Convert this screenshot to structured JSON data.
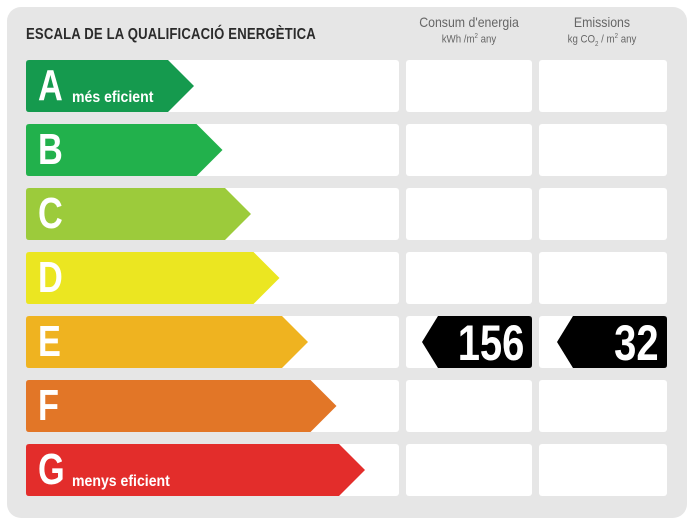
{
  "title": "ESCALA DE LA QUALIFICACIÓ ENERGÈTICA",
  "columns": {
    "energy": {
      "label": "Consum d'energia",
      "unit_prefix": "kWh /m",
      "unit_sup": "2",
      "unit_suffix": " any"
    },
    "emissions": {
      "label": "Emissions",
      "unit_prefix": "kg CO",
      "unit_sub": "2",
      "unit_mid": "  / m",
      "unit_sup": "2",
      "unit_suffix": " any"
    }
  },
  "classes": [
    {
      "letter": "A",
      "sub": "més eficient",
      "color": "#159a4e"
    },
    {
      "letter": "B",
      "sub": "",
      "color": "#22b14c"
    },
    {
      "letter": "C",
      "sub": "",
      "color": "#9ccb3b"
    },
    {
      "letter": "D",
      "sub": "",
      "color": "#ebe621"
    },
    {
      "letter": "E",
      "sub": "",
      "color": "#efb320"
    },
    {
      "letter": "F",
      "sub": "",
      "color": "#e27627"
    },
    {
      "letter": "G",
      "sub": "menys eficient",
      "color": "#e32d2b"
    }
  ],
  "rating": {
    "class": "E",
    "energy_value": "156",
    "emissions_value": "32"
  }
}
